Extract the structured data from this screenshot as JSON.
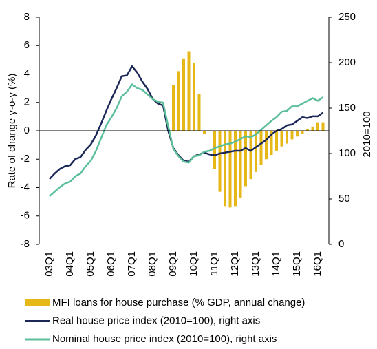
{
  "chart_data": {
    "type": "combo",
    "y_label": "Rate of change y-o-y (%)",
    "y2_label": "2010=100",
    "categories": [
      "03Q1",
      null,
      null,
      null,
      "04Q1",
      null,
      null,
      null,
      "05Q1",
      null,
      null,
      null,
      "06Q1",
      null,
      null,
      null,
      "07Q1",
      null,
      null,
      null,
      "08Q1",
      null,
      null,
      null,
      "09Q1",
      null,
      null,
      null,
      "10Q1",
      null,
      null,
      null,
      "11Q1",
      null,
      null,
      null,
      "12Q1",
      null,
      null,
      null,
      "13Q1",
      null,
      null,
      null,
      "14Q1",
      null,
      null,
      null,
      "15Q1",
      null,
      null,
      null,
      "16Q1",
      null
    ],
    "series": [
      {
        "name": "MFI loans for house purchase (% GDP, annual change)",
        "type": "bar",
        "color": "#e6b817",
        "values": [
          null,
          null,
          null,
          null,
          null,
          null,
          null,
          null,
          null,
          null,
          null,
          null,
          null,
          null,
          null,
          null,
          null,
          null,
          null,
          null,
          null,
          null,
          null,
          null,
          3.2,
          4.2,
          5.1,
          5.6,
          4.8,
          2.6,
          -0.2,
          0,
          -2.7,
          -4.3,
          -5.3,
          -5.4,
          -5.3,
          -4.7,
          -3.9,
          -3.4,
          -2.9,
          -2.4,
          -2.0,
          -1.7,
          -1.4,
          -1.1,
          -0.9,
          -0.6,
          -0.4,
          -0.2,
          0.1,
          0.3,
          0.6,
          0.6
        ]
      },
      {
        "name": "Real house price index (2010=100), right axis",
        "type": "line",
        "axis": "y2",
        "color": "#1b2757",
        "values": [
          72,
          78,
          83,
          86,
          87,
          94,
          96,
          104,
          110,
          120,
          133,
          147,
          160,
          172,
          185,
          186,
          196,
          189,
          179,
          171,
          160,
          155,
          153,
          125,
          106,
          98,
          92,
          91,
          97,
          99,
          101,
          99,
          98,
          100,
          101,
          102,
          103,
          103,
          106,
          103,
          107,
          111,
          115,
          121,
          125,
          127,
          131,
          132,
          136,
          140,
          139,
          141,
          141,
          145
        ]
      },
      {
        "name": "Nominal house price index (2010=100), right axis",
        "type": "line",
        "axis": "y2",
        "color": "#5cbf9a",
        "values": [
          53,
          58,
          63,
          67,
          69,
          75,
          78,
          86,
          92,
          103,
          117,
          131,
          140,
          150,
          163,
          168,
          176,
          172,
          170,
          165,
          160,
          157,
          156,
          130,
          105,
          97,
          91,
          90,
          97,
          98,
          102,
          103,
          106,
          108,
          110,
          111,
          113,
          116,
          119,
          118,
          121,
          126,
          131,
          136,
          140,
          146,
          147,
          152,
          152,
          155,
          158,
          161,
          158,
          162
        ]
      }
    ],
    "ylim": [
      -8,
      8
    ],
    "yticks": [
      -8,
      -6,
      -4,
      -2,
      0,
      2,
      4,
      6,
      8
    ],
    "y2lim": [
      0,
      250
    ],
    "y2ticks": [
      0,
      50,
      100,
      150,
      200,
      250
    ],
    "grid": false
  }
}
